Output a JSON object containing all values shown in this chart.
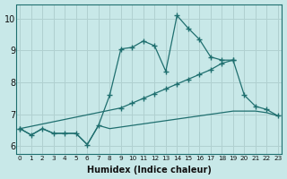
{
  "xlabel": "Humidex (Indice chaleur)",
  "bg_color": "#c8e8e8",
  "grid_color": "#b0d0d0",
  "line_color": "#1f6f6f",
  "xlim": [
    -0.3,
    23.3
  ],
  "ylim": [
    5.75,
    10.45
  ],
  "xticks": [
    0,
    1,
    2,
    3,
    4,
    5,
    6,
    7,
    8,
    9,
    10,
    11,
    12,
    13,
    14,
    15,
    16,
    17,
    18,
    19,
    20,
    21,
    22,
    23
  ],
  "yticks": [
    6,
    7,
    8,
    9,
    10
  ],
  "line_peak": {
    "x": [
      0,
      1,
      2,
      3,
      4,
      5,
      6,
      7,
      8,
      9,
      10,
      11,
      12,
      13,
      14,
      15,
      16,
      17,
      18,
      19
    ],
    "y": [
      6.55,
      6.35,
      6.55,
      6.4,
      6.4,
      6.4,
      6.05,
      6.65,
      7.6,
      9.05,
      9.1,
      9.3,
      9.15,
      8.35,
      10.1,
      9.7,
      9.35,
      8.8,
      8.7,
      8.7
    ]
  },
  "line_diag": {
    "x": [
      0,
      9,
      10,
      11,
      12,
      13,
      14,
      15,
      16,
      17,
      18,
      19,
      20,
      21,
      22,
      23
    ],
    "y": [
      6.55,
      7.2,
      7.35,
      7.5,
      7.65,
      7.8,
      7.95,
      8.1,
      8.25,
      8.4,
      8.6,
      8.7,
      7.6,
      7.25,
      7.15,
      6.95
    ]
  },
  "line_flat": {
    "x": [
      0,
      1,
      2,
      3,
      4,
      5,
      6,
      7,
      8,
      9,
      10,
      11,
      12,
      13,
      14,
      15,
      16,
      17,
      18,
      19,
      20,
      21,
      22,
      23
    ],
    "y": [
      6.55,
      6.35,
      6.55,
      6.4,
      6.4,
      6.4,
      6.05,
      6.65,
      6.55,
      6.6,
      6.65,
      6.7,
      6.75,
      6.8,
      6.85,
      6.9,
      6.95,
      7.0,
      7.05,
      7.1,
      7.1,
      7.1,
      7.05,
      6.95
    ]
  }
}
